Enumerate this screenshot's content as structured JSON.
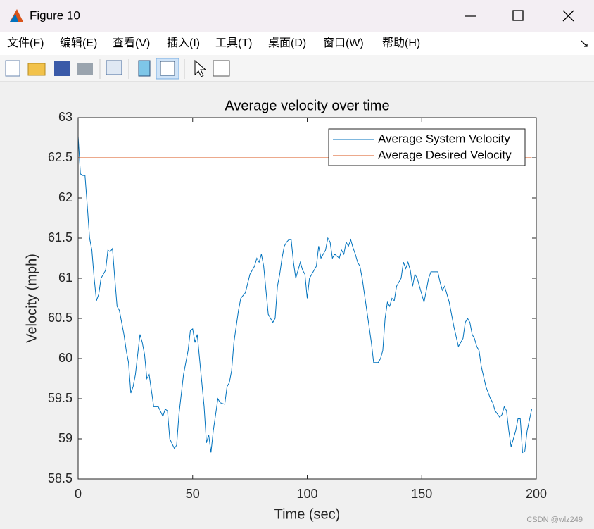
{
  "window": {
    "title": "Figure 10",
    "menu": [
      "文件(F)",
      "编辑(E)",
      "查看(V)",
      "插入(I)",
      "工具(T)",
      "桌面(D)",
      "窗口(W)",
      "帮助(H)"
    ]
  },
  "watermark": "CSDN @wlz249",
  "chart_data": {
    "type": "line",
    "title": "Average velocity over time",
    "xlabel": "Time (sec)",
    "ylabel": "Velocity (mph)",
    "xlim": [
      0,
      200
    ],
    "xticks": [
      0,
      50,
      100,
      150,
      200
    ],
    "ylim": [
      58.5,
      63
    ],
    "yticks": [
      58.5,
      59,
      59.5,
      60,
      60.5,
      61,
      61.5,
      62,
      62.5,
      63
    ],
    "legend": "northeast",
    "grid": false,
    "series": [
      {
        "name": "Average System Velocity",
        "color": "#0072bd",
        "x": [
          0,
          1,
          2,
          3,
          4,
          5,
          6,
          7,
          8,
          9,
          10,
          12,
          13,
          14,
          15,
          16,
          17,
          18,
          20,
          21,
          22,
          23,
          24,
          25,
          27,
          28,
          29,
          30,
          31,
          32,
          33,
          35,
          37,
          38,
          39,
          40,
          42,
          43,
          44,
          46,
          48,
          49,
          50,
          51,
          52,
          53,
          54,
          55,
          56,
          57,
          58,
          59,
          60,
          61,
          62,
          64,
          65,
          66,
          67,
          68,
          70,
          71,
          73,
          75,
          77,
          78,
          79,
          80,
          81,
          82,
          83,
          84,
          85,
          86,
          87,
          88,
          89,
          90,
          91,
          92,
          93,
          94,
          95,
          96,
          97,
          98,
          99,
          100,
          101,
          103,
          104,
          105,
          106,
          107,
          108,
          109,
          110,
          111,
          112,
          114,
          115,
          116,
          117,
          118,
          119,
          120,
          121,
          122,
          123,
          124,
          126,
          128,
          129,
          131,
          132,
          133,
          134,
          135,
          136,
          137,
          138,
          139,
          141,
          142,
          143,
          144,
          145,
          146,
          147,
          148,
          149,
          150,
          151,
          153,
          154,
          157,
          158,
          159,
          160,
          162,
          164,
          166,
          167,
          168,
          169,
          170,
          171,
          172,
          173,
          174,
          175,
          176,
          178,
          180,
          181,
          182,
          184,
          185,
          186,
          187,
          188,
          189,
          190,
          191,
          192,
          193,
          194,
          195,
          196,
          198
        ],
        "values": [
          62.77,
          62.3,
          62.28,
          62.28,
          61.9,
          61.5,
          61.35,
          61.0,
          60.72,
          60.8,
          61.0,
          61.1,
          61.35,
          61.33,
          61.37,
          61.0,
          60.65,
          60.6,
          60.3,
          60.1,
          59.95,
          59.57,
          59.65,
          59.8,
          60.3,
          60.2,
          60.05,
          59.75,
          59.8,
          59.6,
          59.4,
          59.4,
          59.28,
          59.37,
          59.35,
          59.0,
          58.88,
          58.92,
          59.3,
          59.8,
          60.1,
          60.35,
          60.37,
          60.2,
          60.3,
          60.0,
          59.7,
          59.4,
          58.95,
          59.05,
          58.83,
          59.1,
          59.3,
          59.5,
          59.45,
          59.43,
          59.65,
          59.7,
          59.85,
          60.2,
          60.6,
          60.75,
          60.82,
          61.05,
          61.15,
          61.25,
          61.2,
          61.3,
          61.15,
          60.85,
          60.55,
          60.5,
          60.45,
          60.5,
          60.9,
          61.05,
          61.25,
          61.4,
          61.45,
          61.48,
          61.48,
          61.2,
          61.0,
          61.1,
          61.2,
          61.1,
          61.05,
          60.75,
          61.0,
          61.1,
          61.15,
          61.4,
          61.25,
          61.3,
          61.35,
          61.5,
          61.45,
          61.25,
          61.3,
          61.25,
          61.35,
          61.3,
          61.45,
          61.4,
          61.48,
          61.38,
          61.3,
          61.2,
          61.15,
          61.0,
          60.6,
          60.2,
          59.95,
          59.95,
          60.0,
          60.1,
          60.5,
          60.7,
          60.65,
          60.75,
          60.72,
          60.9,
          61.0,
          61.2,
          61.12,
          61.2,
          61.1,
          60.9,
          61.05,
          61.0,
          60.9,
          60.8,
          60.7,
          61.0,
          61.08,
          61.08,
          60.95,
          60.85,
          60.9,
          60.7,
          60.4,
          60.15,
          60.2,
          60.25,
          60.45,
          60.5,
          60.45,
          60.3,
          60.25,
          60.15,
          60.1,
          59.9,
          59.65,
          59.5,
          59.45,
          59.35,
          59.27,
          59.3,
          59.4,
          59.35,
          59.1,
          58.9,
          59.0,
          59.1,
          59.25,
          59.25,
          58.83,
          58.85,
          59.1,
          59.37
        ]
      },
      {
        "name": "Average Desired Velocity",
        "color": "#d95319",
        "x": [
          0,
          198
        ],
        "values": [
          62.5,
          62.5
        ]
      }
    ]
  }
}
